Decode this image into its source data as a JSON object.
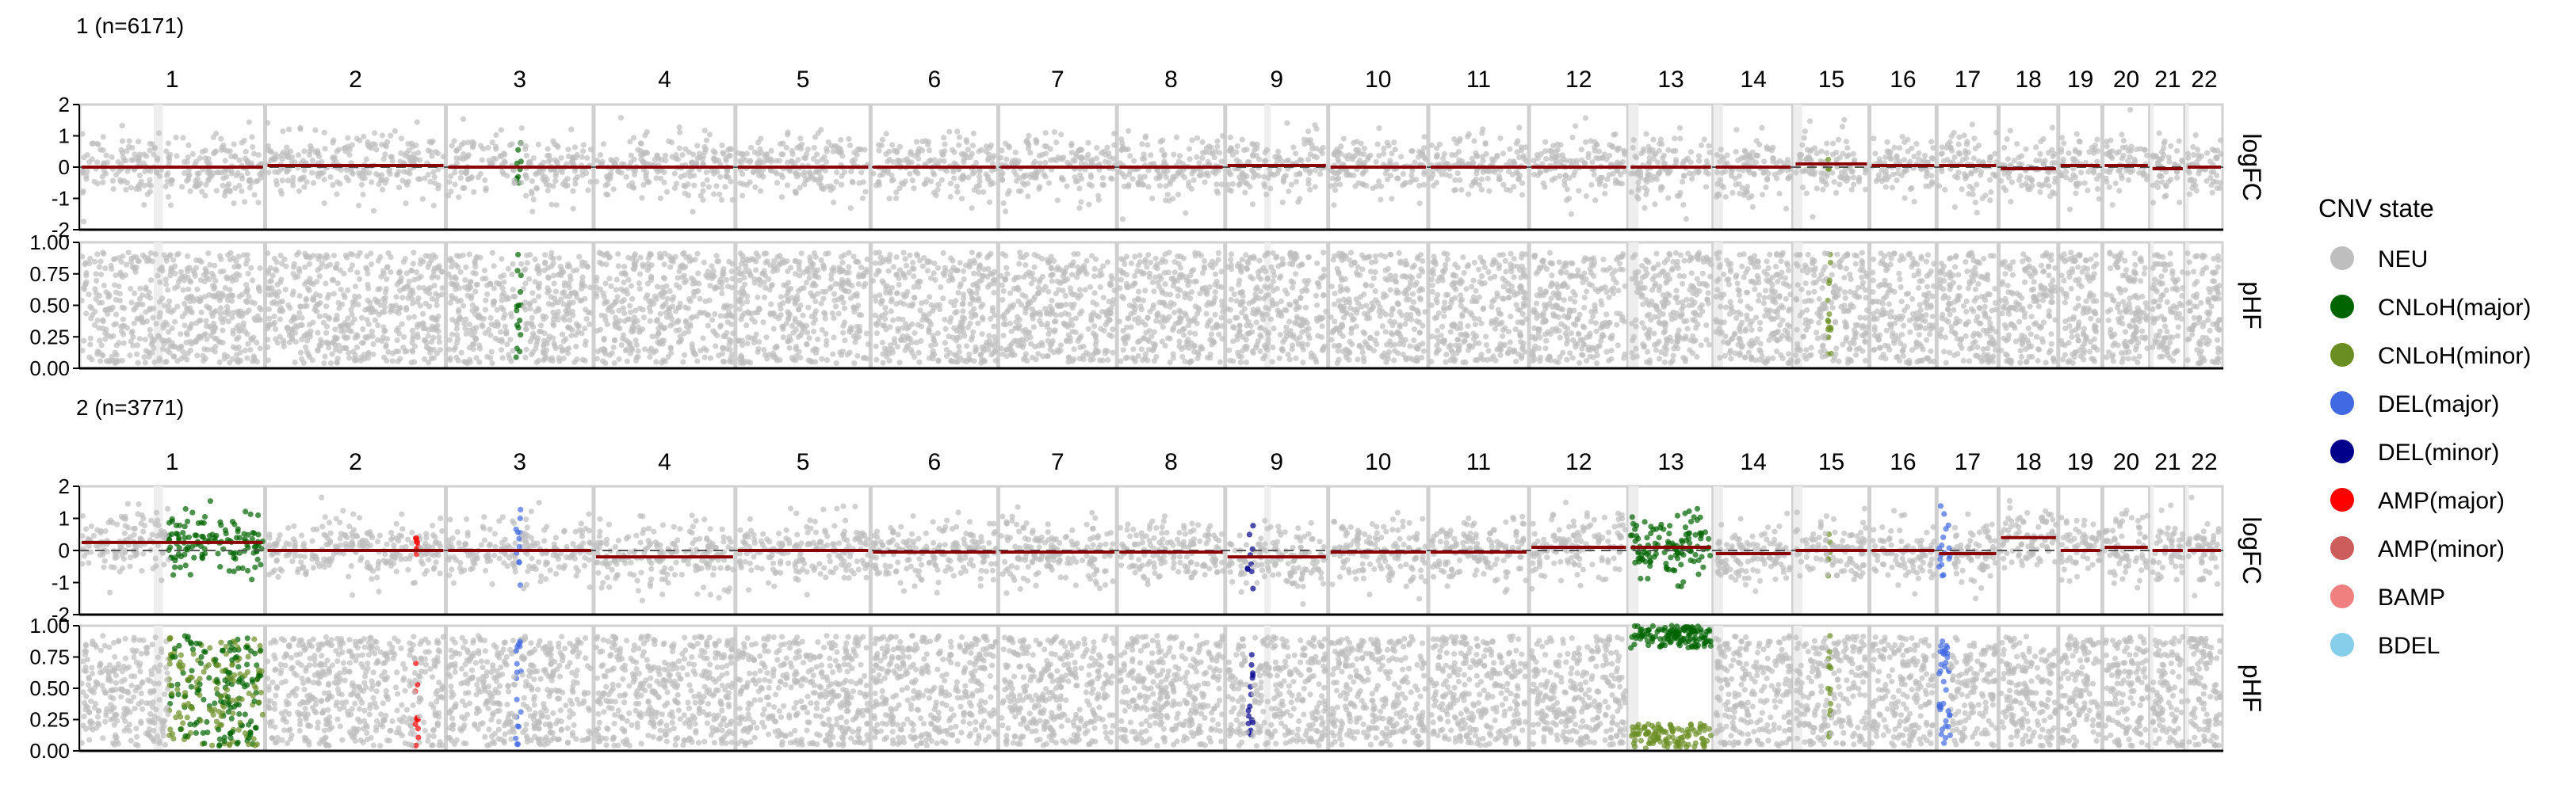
{
  "chart_data": {
    "type": "scatter",
    "chromosomes": [
      "1",
      "2",
      "3",
      "4",
      "5",
      "6",
      "7",
      "8",
      "9",
      "10",
      "11",
      "12",
      "13",
      "14",
      "15",
      "16",
      "17",
      "18",
      "19",
      "20",
      "21",
      "22"
    ],
    "chrom_sizes": [
      249,
      242,
      198,
      190,
      181,
      171,
      159,
      145,
      138,
      134,
      135,
      133,
      114,
      107,
      102,
      90,
      83,
      80,
      59,
      64,
      47,
      51
    ],
    "strip_labels": [
      "logFC",
      "pHF"
    ],
    "logfc_axis": {
      "ticks": [
        "2",
        "1",
        "0",
        "-1",
        "-2"
      ],
      "tick_values": [
        2,
        1,
        0,
        -1,
        -2
      ],
      "ylim": [
        -2,
        2
      ]
    },
    "phf_axis": {
      "ticks": [
        "1.00",
        "0.75",
        "0.50",
        "0.25",
        "0.00"
      ],
      "tick_values": [
        1,
        0.75,
        0.5,
        0.25,
        0
      ],
      "ylim": [
        0,
        1
      ]
    },
    "legend": {
      "title": "CNV state",
      "position": "right",
      "entries": [
        {
          "label": "NEU",
          "color": "#bebebe"
        },
        {
          "label": "CNLoH(major)",
          "color": "#006400"
        },
        {
          "label": "CNLoH(minor)",
          "color": "#6b8e23"
        },
        {
          "label": "DEL(major)",
          "color": "#4169e1"
        },
        {
          "label": "DEL(minor)",
          "color": "#00008b"
        },
        {
          "label": "AMP(major)",
          "color": "#ff0000"
        },
        {
          "label": "AMP(minor)",
          "color": "#cd5c5c"
        },
        {
          "label": "BAMP",
          "color": "#f08080"
        },
        {
          "label": "BDEL",
          "color": "#87ceeb"
        }
      ]
    },
    "panels": [
      {
        "title": "1 (n=6171)",
        "segments": [
          {
            "chr": "1",
            "state": "NEU",
            "logFC_mean": 0.0
          },
          {
            "chr": "2",
            "state": "NEU",
            "logFC_mean": 0.05
          },
          {
            "chr": "3",
            "state": "CNLoH(major)",
            "start_frac": 0.47,
            "end_frac": 0.51,
            "logFC_mean": 0.0
          },
          {
            "chr": "4",
            "state": "NEU",
            "logFC_mean": 0.0
          },
          {
            "chr": "5",
            "state": "NEU",
            "logFC_mean": 0.0
          },
          {
            "chr": "6",
            "state": "NEU",
            "logFC_mean": 0.0
          },
          {
            "chr": "7",
            "state": "NEU",
            "logFC_mean": 0.0
          },
          {
            "chr": "8",
            "state": "NEU",
            "logFC_mean": 0.0
          },
          {
            "chr": "9",
            "state": "NEU",
            "logFC_mean": 0.05
          },
          {
            "chr": "10",
            "state": "NEU",
            "logFC_mean": 0.0
          },
          {
            "chr": "11",
            "state": "NEU",
            "logFC_mean": 0.0
          },
          {
            "chr": "12",
            "state": "NEU",
            "logFC_mean": 0.0
          },
          {
            "chr": "13",
            "state": "NEU",
            "logFC_mean": 0.0
          },
          {
            "chr": "14",
            "state": "NEU",
            "logFC_mean": 0.0
          },
          {
            "chr": "15",
            "state": "CNLoH(minor)",
            "start_frac": 0.45,
            "end_frac": 0.5,
            "logFC_mean": 0.1
          },
          {
            "chr": "16",
            "state": "NEU",
            "logFC_mean": 0.05
          },
          {
            "chr": "17",
            "state": "NEU",
            "logFC_mean": 0.05
          },
          {
            "chr": "18",
            "state": "NEU",
            "logFC_mean": -0.05
          },
          {
            "chr": "19",
            "state": "NEU",
            "logFC_mean": 0.05
          },
          {
            "chr": "20",
            "state": "NEU",
            "logFC_mean": 0.05
          },
          {
            "chr": "21",
            "state": "NEU",
            "logFC_mean": -0.05
          },
          {
            "chr": "22",
            "state": "NEU",
            "logFC_mean": 0.0
          }
        ]
      },
      {
        "title": "2 (n=3771)",
        "segments": [
          {
            "chr": "1",
            "state": "CNLoH(major)",
            "start_frac": 0.48,
            "end_frac": 1.0,
            "logFC_mean": 0.25
          },
          {
            "chr": "2",
            "state": "AMP(major)",
            "start_frac": 0.84,
            "end_frac": 0.86,
            "logFC_mean": 0.0
          },
          {
            "chr": "3",
            "state": "DEL(major)",
            "start_frac": 0.47,
            "end_frac": 0.51,
            "logFC_mean": 0.0
          },
          {
            "chr": "4",
            "state": "NEU",
            "logFC_mean": -0.2
          },
          {
            "chr": "5",
            "state": "NEU",
            "logFC_mean": 0.0
          },
          {
            "chr": "6",
            "state": "NEU",
            "logFC_mean": -0.05
          },
          {
            "chr": "7",
            "state": "NEU",
            "logFC_mean": -0.05
          },
          {
            "chr": "8",
            "state": "NEU",
            "logFC_mean": -0.05
          },
          {
            "chr": "9",
            "state": "DEL(minor)",
            "start_frac": 0.2,
            "end_frac": 0.26,
            "logFC_mean": -0.2
          },
          {
            "chr": "10",
            "state": "NEU",
            "logFC_mean": -0.05
          },
          {
            "chr": "11",
            "state": "NEU",
            "logFC_mean": -0.05
          },
          {
            "chr": "12",
            "state": "NEU",
            "logFC_mean": 0.1
          },
          {
            "chr": "13",
            "state": "CNLoH(major)",
            "start_frac": 0.0,
            "end_frac": 1.0,
            "logFC_mean": 0.1
          },
          {
            "chr": "14",
            "state": "NEU",
            "logFC_mean": -0.1
          },
          {
            "chr": "15",
            "state": "CNLoH(minor)",
            "start_frac": 0.45,
            "end_frac": 0.5,
            "logFC_mean": 0.0
          },
          {
            "chr": "16",
            "state": "NEU",
            "logFC_mean": 0.0
          },
          {
            "chr": "17",
            "state": "DEL(major)",
            "start_frac": 0.0,
            "end_frac": 0.2,
            "logFC_mean": -0.1
          },
          {
            "chr": "18",
            "state": "NEU",
            "logFC_mean": 0.4
          },
          {
            "chr": "19",
            "state": "NEU",
            "logFC_mean": 0.0
          },
          {
            "chr": "20",
            "state": "NEU",
            "logFC_mean": 0.1
          },
          {
            "chr": "21",
            "state": "NEU",
            "logFC_mean": 0.0
          },
          {
            "chr": "22",
            "state": "NEU",
            "logFC_mean": 0.0
          }
        ]
      }
    ],
    "grid": false
  }
}
